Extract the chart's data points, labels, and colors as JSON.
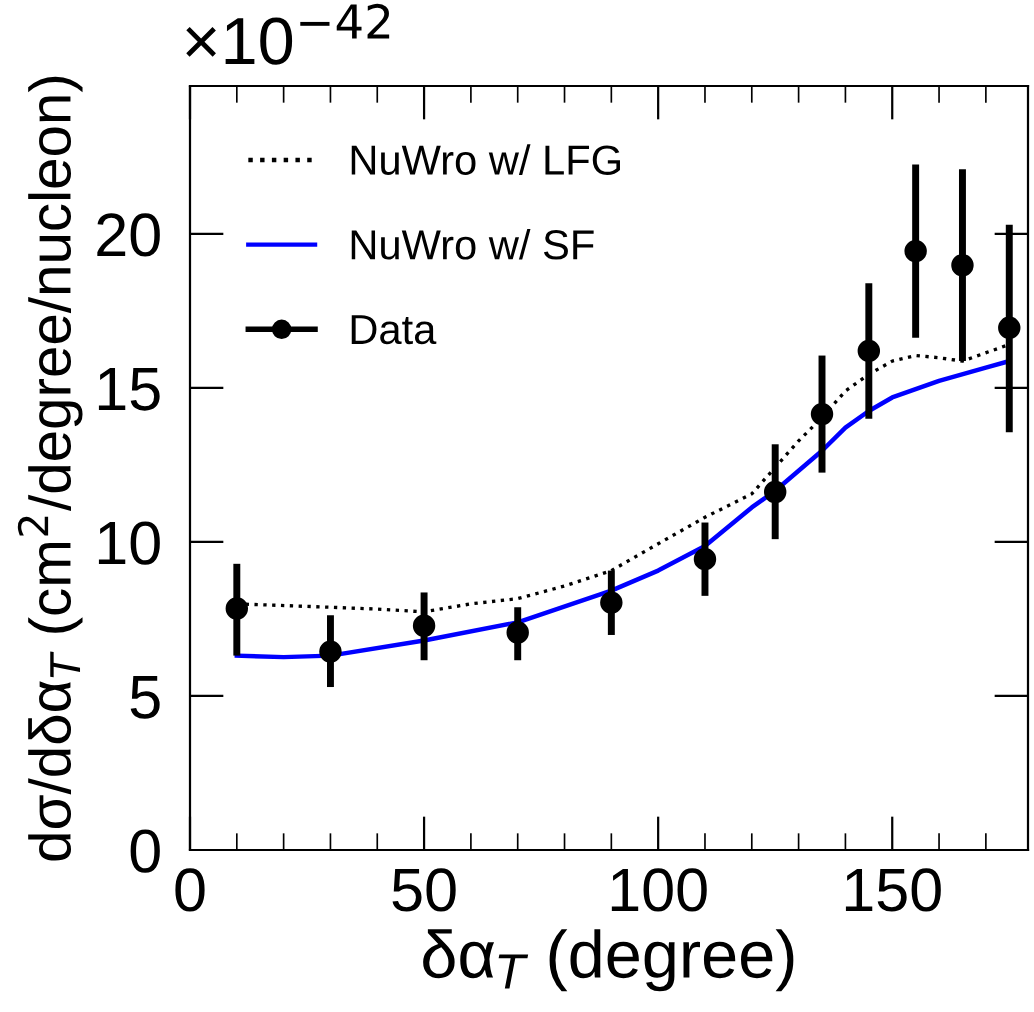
{
  "chart_data": {
    "type": "line",
    "xlabel": "δα$_{T}$ (degree)",
    "ylabel": "dσ/dδα$_{T}$ (cm$^{2}$/degree/nucleon)",
    "annotations": [
      "×10$^{−42}$"
    ],
    "xlim": [
      0,
      179
    ],
    "xticks": [
      0,
      50,
      100,
      150
    ],
    "ylim": [
      0,
      24.8
    ],
    "yticks": [
      0,
      5,
      10,
      15,
      20
    ],
    "grid": false,
    "legend": "top left",
    "series": [
      {
        "name": "NuWro w/ LFG",
        "color": "#000000",
        "line_style": "dotted",
        "marker": "none",
        "x": [
          10,
          30,
          40,
          50,
          60,
          70,
          80,
          90,
          100,
          110,
          120,
          125,
          130,
          135,
          140,
          145,
          150,
          155,
          160,
          165,
          175
        ],
        "values": [
          7.99,
          7.88,
          7.82,
          7.73,
          7.99,
          8.16,
          8.57,
          9.07,
          9.94,
          10.8,
          11.56,
          12.42,
          13.28,
          14.04,
          14.9,
          15.44,
          15.87,
          16.05,
          15.98,
          15.87,
          16.41
        ]
      },
      {
        "name": "NuWro w/ SF",
        "color": "#0000ff",
        "line_style": "solid",
        "marker": "none",
        "x": [
          10,
          20,
          30,
          50,
          70,
          90,
          100,
          110,
          120,
          125,
          130,
          135,
          140,
          145,
          150,
          160,
          170,
          175
        ],
        "values": [
          6.31,
          6.26,
          6.31,
          6.8,
          7.39,
          8.42,
          9.07,
          9.87,
          11.12,
          11.66,
          12.31,
          12.96,
          13.71,
          14.25,
          14.69,
          15.23,
          15.66,
          15.87
        ]
      },
      {
        "name": "Data",
        "type": "scatter",
        "color": "#000000",
        "marker": "circle",
        "x": [
          10,
          30,
          50,
          70,
          90,
          110,
          125,
          135,
          145,
          155,
          165,
          175
        ],
        "values": [
          7.84,
          6.44,
          7.28,
          7.06,
          8.03,
          9.44,
          11.62,
          14.15,
          16.2,
          19.44,
          18.98,
          16.95
        ],
        "errors": [
          [
            6.31,
            9.29
          ],
          [
            5.29,
            7.62
          ],
          [
            6.16,
            8.36
          ],
          [
            6.16,
            7.88
          ],
          [
            6.98,
            9.07
          ],
          [
            8.25,
            10.63
          ],
          [
            10.09,
            13.17
          ],
          [
            12.25,
            16.05
          ],
          [
            14.0,
            18.4
          ],
          [
            16.63,
            22.25
          ],
          [
            15.87,
            22.1
          ],
          [
            13.56,
            20.3
          ]
        ]
      }
    ]
  }
}
